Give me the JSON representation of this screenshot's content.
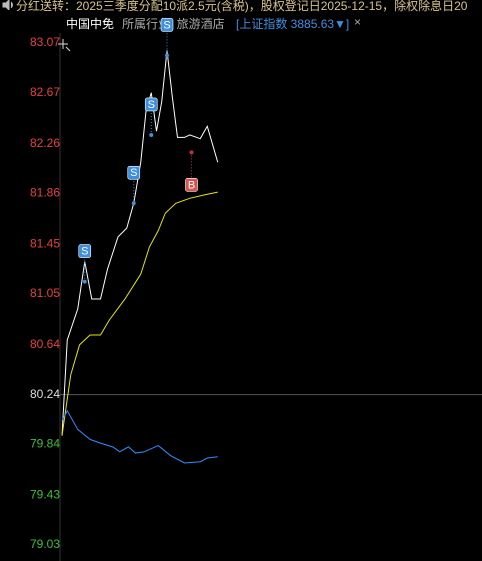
{
  "header": {
    "notice": "分红送转：2025三季度分配10派2.5元(含税)，股权登记日2025-12-15，除权除息日20",
    "stock": "中国中免",
    "industry": "所属行业: 旅游酒店",
    "index": "[上证指数 3885.63▼]",
    "close": "×"
  },
  "chart_data": {
    "type": "line",
    "reference": 80.24,
    "ylim": [
      79.03,
      83.07
    ],
    "yticks": [
      83.07,
      82.67,
      82.26,
      81.86,
      81.45,
      81.05,
      80.64,
      80.24,
      79.84,
      79.43,
      79.03
    ],
    "xlim": [
      0,
      240
    ],
    "series": [
      {
        "name": "price",
        "color": "#ffffff",
        "x": [
          0,
          3,
          9,
          13,
          17,
          22,
          26,
          32,
          37,
          41,
          45,
          48,
          51,
          54,
          57,
          60,
          63,
          66,
          70,
          73,
          79,
          83,
          89
        ],
        "values": [
          79.91,
          80.68,
          80.93,
          81.31,
          81.01,
          81.01,
          81.25,
          81.51,
          81.58,
          81.78,
          82.11,
          82.52,
          82.67,
          82.36,
          82.6,
          83.01,
          82.64,
          82.31,
          82.31,
          82.33,
          82.3,
          82.4,
          82.11
        ]
      },
      {
        "name": "average",
        "color": "#e6e600",
        "x": [
          0,
          5,
          10,
          16,
          22,
          27,
          36,
          45,
          50,
          55,
          59,
          65,
          73,
          82,
          89
        ],
        "values": [
          79.91,
          80.4,
          80.64,
          80.72,
          80.72,
          80.84,
          81.01,
          81.21,
          81.43,
          81.56,
          81.7,
          81.78,
          81.82,
          81.85,
          81.87
        ]
      },
      {
        "name": "index",
        "color": "#2f8fff",
        "x": [
          0,
          3,
          9,
          16,
          22,
          29,
          33,
          38,
          42,
          47,
          55,
          62,
          70,
          79,
          83,
          89
        ],
        "values": [
          80.03,
          80.11,
          79.96,
          79.88,
          79.85,
          79.82,
          79.78,
          79.82,
          79.77,
          79.78,
          79.83,
          79.75,
          79.69,
          79.7,
          79.73,
          79.74
        ]
      }
    ],
    "signals": [
      {
        "label": "S",
        "x": 13,
        "y": 81.15
      },
      {
        "label": "S",
        "x": 41,
        "y": 81.78
      },
      {
        "label": "S",
        "x": 51,
        "y": 82.33
      },
      {
        "label": "S",
        "x": 60,
        "y": 82.97
      },
      {
        "label": "B",
        "x": 74,
        "y": 82.19
      }
    ]
  }
}
